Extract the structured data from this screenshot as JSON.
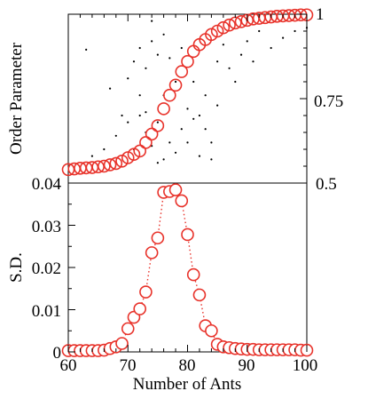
{
  "colors": {
    "accent": "#e8322a",
    "axes": "#000000",
    "raw": "#000000"
  },
  "chart_data": [
    {
      "type": "scatter",
      "panel": "top",
      "ylabel": "Order Parameter",
      "xlim": [
        60,
        100
      ],
      "ylim": [
        0.5,
        1.0
      ],
      "ytick_side": "right",
      "yticks": [
        0.5,
        0.75,
        1
      ],
      "ytick_labels": [
        "0.5",
        "0.75",
        "1"
      ],
      "grid": false,
      "series": [
        {
          "style": "open-circle",
          "x": [
            60,
            61,
            62,
            63,
            64,
            65,
            66,
            67,
            68,
            69,
            70,
            71,
            72,
            73,
            74,
            75,
            76,
            77,
            78,
            79,
            80,
            81,
            82,
            83,
            84,
            85,
            86,
            87,
            88,
            89,
            90,
            91,
            92,
            93,
            94,
            95,
            96,
            97,
            98,
            99,
            100
          ],
          "values": [
            0.54,
            0.542,
            0.544,
            0.545,
            0.546,
            0.548,
            0.55,
            0.554,
            0.558,
            0.565,
            0.575,
            0.585,
            0.595,
            0.62,
            0.645,
            0.67,
            0.72,
            0.76,
            0.79,
            0.83,
            0.86,
            0.89,
            0.91,
            0.925,
            0.94,
            0.95,
            0.96,
            0.968,
            0.974,
            0.978,
            0.982,
            0.986,
            0.988,
            0.99,
            0.992,
            0.994,
            0.995,
            0.996,
            0.997,
            0.998,
            0.998
          ]
        },
        {
          "style": "dot",
          "x": [
            63,
            64,
            66,
            67,
            68,
            69,
            70,
            70,
            71,
            71,
            72,
            72,
            72,
            73,
            73,
            73,
            74,
            74,
            74,
            75,
            75,
            75,
            76,
            76,
            76,
            77,
            77,
            78,
            78,
            79,
            79,
            80,
            80,
            81,
            81,
            82,
            82,
            83,
            83,
            84,
            84,
            85,
            85,
            86,
            87,
            88,
            89,
            90,
            91,
            92,
            94,
            96,
            98,
            100
          ],
          "values": [
            0.895,
            0.58,
            0.6,
            0.78,
            0.64,
            0.7,
            0.81,
            0.68,
            0.86,
            0.6,
            0.9,
            0.7,
            0.76,
            0.84,
            0.65,
            0.71,
            0.98,
            0.61,
            0.92,
            0.88,
            0.56,
            0.68,
            0.57,
            0.76,
            0.94,
            0.62,
            0.87,
            0.59,
            0.8,
            0.66,
            0.9,
            0.62,
            0.72,
            0.69,
            0.8,
            0.58,
            0.7,
            0.66,
            0.76,
            0.57,
            0.62,
            0.86,
            0.73,
            0.91,
            0.84,
            0.8,
            0.88,
            0.92,
            0.86,
            0.95,
            0.9,
            0.93,
            0.95,
            0.96
          ]
        }
      ]
    },
    {
      "type": "line",
      "panel": "bottom",
      "xlabel": "Number of Ants",
      "ylabel": "S.D.",
      "xlim": [
        60,
        100
      ],
      "ylim": [
        0,
        0.04
      ],
      "xticks": [
        60,
        70,
        80,
        90,
        100
      ],
      "xtick_labels": [
        "60",
        "70",
        "80",
        "90",
        "100"
      ],
      "yticks": [
        0,
        0.01,
        0.02,
        0.03,
        0.04
      ],
      "ytick_labels": [
        "0",
        "0.01",
        "0.02",
        "0.03",
        "0.04"
      ],
      "grid": false,
      "line_style": "dotted",
      "marker": "open-circle",
      "series": [
        {
          "x": [
            60,
            61,
            62,
            63,
            64,
            65,
            66,
            67,
            68,
            69,
            70,
            71,
            72,
            73,
            74,
            75,
            76,
            77,
            78,
            79,
            80,
            81,
            82,
            83,
            84,
            85,
            86,
            87,
            88,
            89,
            90,
            91,
            92,
            93,
            94,
            95,
            96,
            97,
            98,
            99,
            100
          ],
          "values": [
            0.0003,
            0.0003,
            0.0003,
            0.0003,
            0.0003,
            0.0003,
            0.0004,
            0.0008,
            0.0012,
            0.002,
            0.0055,
            0.0082,
            0.0102,
            0.0142,
            0.0235,
            0.027,
            0.0378,
            0.038,
            0.0384,
            0.0358,
            0.0278,
            0.0183,
            0.0135,
            0.0062,
            0.005,
            0.0018,
            0.0012,
            0.001,
            0.0008,
            0.0007,
            0.0006,
            0.0006,
            0.0005,
            0.0005,
            0.0005,
            0.0005,
            0.0005,
            0.0005,
            0.0005,
            0.0004,
            0.0004
          ]
        }
      ]
    }
  ]
}
